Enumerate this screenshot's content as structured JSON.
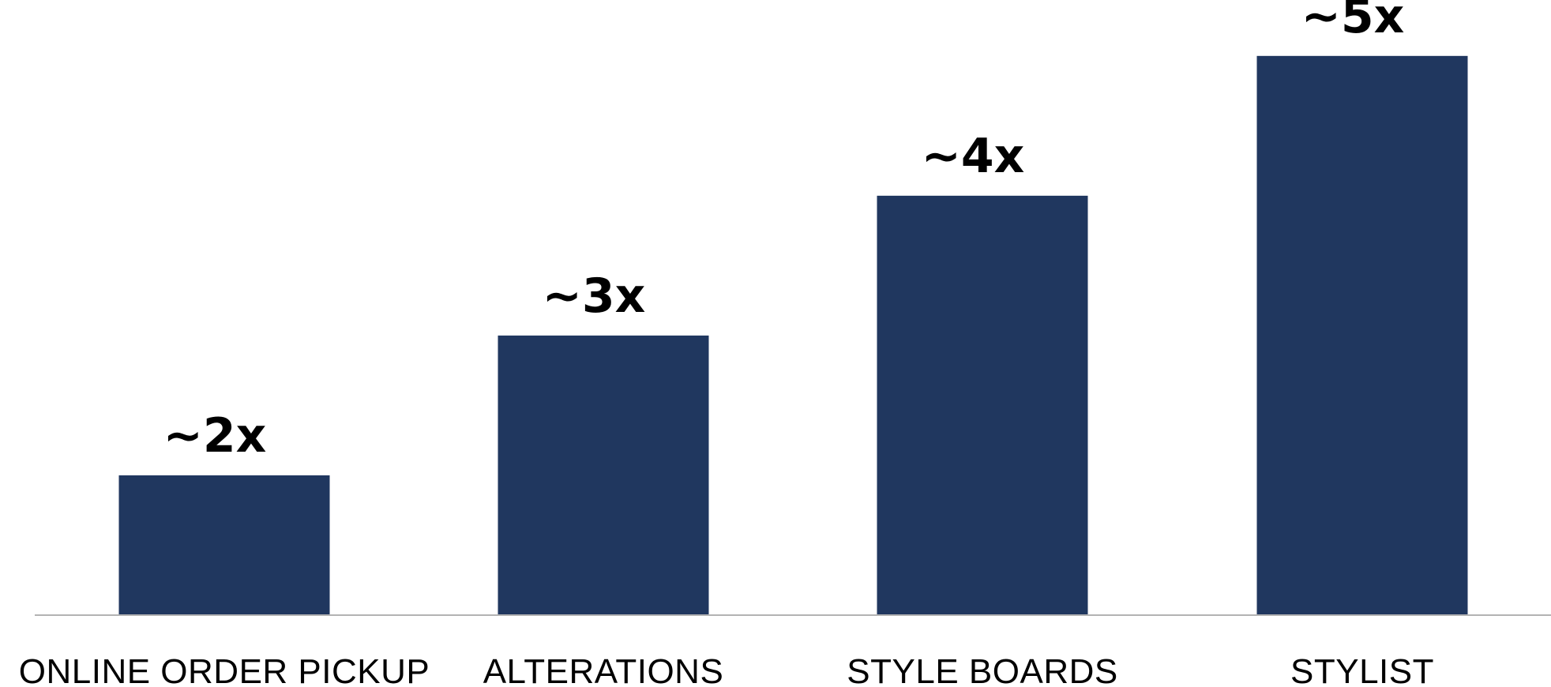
{
  "chart_data": {
    "type": "bar",
    "categories": [
      "ONLINE ORDER PICKUP",
      "ALTERATIONS",
      "STYLE BOARDS",
      "STYLIST"
    ],
    "values": [
      2,
      3,
      4,
      5
    ],
    "data_labels": [
      "~2x",
      "~3x",
      "~4x",
      "~5x"
    ],
    "title": "",
    "xlabel": "",
    "ylabel": "",
    "ylim": [
      1,
      5.4
    ],
    "grid": false,
    "colors": {
      "bar": "#20375f",
      "axis": "#b3b3b3"
    }
  }
}
